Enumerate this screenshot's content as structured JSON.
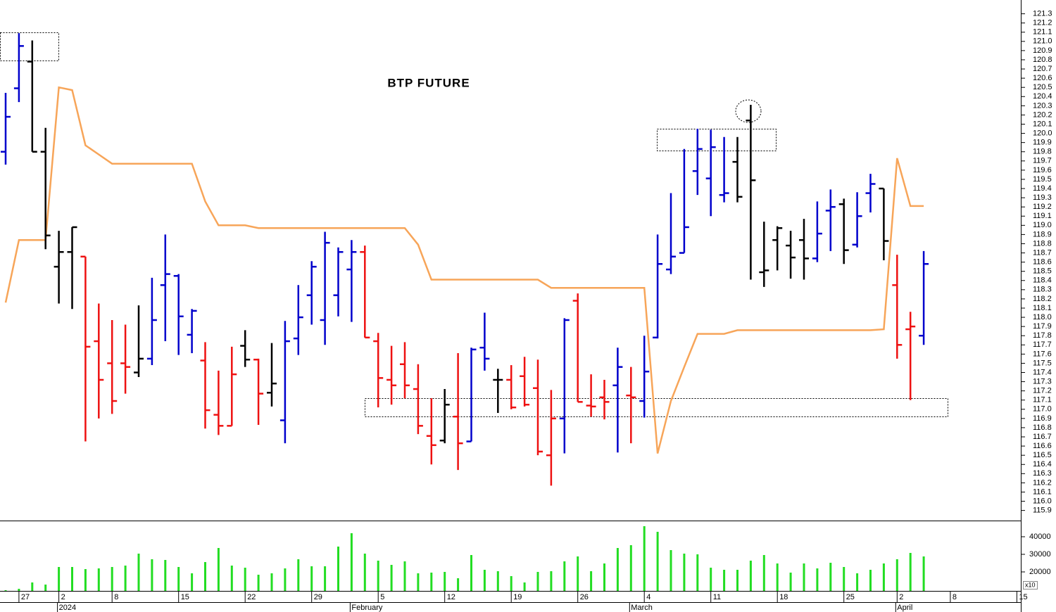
{
  "chart_data": {
    "type": "ohlc",
    "title": "BTP FUTURE",
    "categories": [
      null,
      "27",
      null,
      null,
      "2",
      null,
      null,
      null,
      "8",
      null,
      null,
      null,
      null,
      "15",
      null,
      null,
      null,
      null,
      "22",
      null,
      null,
      null,
      null,
      "29",
      null,
      null,
      null,
      null,
      "5",
      null,
      null,
      null,
      null,
      "12",
      null,
      null,
      null,
      null,
      "19",
      null,
      null,
      null,
      null,
      "26",
      null,
      null,
      null,
      null,
      "4",
      null,
      null,
      null,
      null,
      "11",
      null,
      null,
      null,
      null,
      "18",
      null,
      null,
      null,
      null,
      "25",
      null,
      null,
      null,
      "2",
      null,
      null,
      null,
      "8",
      null,
      null,
      null,
      null,
      "15"
    ],
    "month_labels": [
      null,
      null,
      null,
      null,
      "2024",
      null,
      null,
      null,
      null,
      null,
      null,
      null,
      null,
      null,
      null,
      null,
      null,
      null,
      null,
      null,
      null,
      null,
      null,
      null,
      null,
      null,
      "February",
      null,
      null,
      null,
      null,
      null,
      null,
      null,
      null,
      null,
      null,
      null,
      null,
      null,
      null,
      null,
      null,
      null,
      null,
      null,
      null,
      "March",
      null,
      null,
      null,
      null,
      null,
      null,
      null,
      null,
      null,
      null,
      null,
      null,
      null,
      null,
      null,
      null,
      null,
      null,
      null,
      "April",
      null,
      null,
      null,
      null,
      null,
      null,
      null,
      null,
      null
    ],
    "open": [
      119.8,
      120.49,
      120.78,
      119.8,
      118.55,
      118.71,
      118.66,
      117.74,
      117.5,
      117.5,
      117.4,
      117.55,
      118.35,
      118.45,
      117.81,
      117.53,
      116.94,
      116.82,
      117.69,
      117.54,
      117.18,
      116.88,
      117.77,
      118.24,
      117.97,
      118.24,
      118.52,
      118.71,
      117.74,
      117.32,
      117.49,
      117.22,
      116.71,
      116.66,
      116.92,
      116.65,
      117.67,
      117.32,
      117.32,
      117.36,
      117.23,
      116.5,
      116.9,
      118.18,
      117.04,
      117.13,
      117.26,
      117.15,
      117.09,
      117.78,
      118.52,
      118.7,
      119.59,
      119.51,
      119.33,
      119.69,
      120.14,
      118.49,
      118.84,
      118.78,
      118.84,
      118.64,
      119.16,
      119.23,
      118.79,
      119.35,
      119.4,
      118.35,
      117.87,
      117.8,
      null,
      null,
      null,
      null,
      null,
      null,
      null
    ],
    "high": [
      120.44,
      121.09,
      121.01,
      120.06,
      118.94,
      118.98,
      118.66,
      118.15,
      117.97,
      117.92,
      118.13,
      118.43,
      118.9,
      118.47,
      118.09,
      117.73,
      117.42,
      117.68,
      117.86,
      117.55,
      117.72,
      117.96,
      118.35,
      118.61,
      118.93,
      118.76,
      118.84,
      118.78,
      117.83,
      117.69,
      117.73,
      117.49,
      117.12,
      117.22,
      117.61,
      117.67,
      118.05,
      117.44,
      117.48,
      117.57,
      117.54,
      117.21,
      117.99,
      118.26,
      117.38,
      117.32,
      117.67,
      117.46,
      117.8,
      118.9,
      119.35,
      119.83,
      120.05,
      120.04,
      119.96,
      119.96,
      120.31,
      119.04,
      118.99,
      118.94,
      119.07,
      119.26,
      119.39,
      119.29,
      119.36,
      119.56,
      119.4,
      118.68,
      118.06,
      118.72,
      null,
      null,
      null,
      null,
      null,
      null,
      null
    ],
    "low": [
      119.66,
      120.34,
      119.8,
      118.74,
      118.15,
      118.09,
      116.65,
      116.9,
      116.95,
      117.17,
      117.35,
      117.48,
      117.74,
      117.59,
      117.61,
      116.79,
      116.72,
      116.82,
      117.46,
      116.83,
      117.03,
      116.63,
      117.59,
      117.92,
      117.7,
      118.01,
      117.95,
      117.78,
      117.02,
      117.05,
      117.12,
      116.73,
      116.4,
      116.63,
      116.34,
      116.65,
      117.42,
      116.96,
      117.0,
      117.03,
      116.5,
      116.17,
      116.52,
      117.08,
      116.92,
      116.89,
      116.53,
      116.63,
      116.91,
      117.77,
      118.47,
      118.7,
      119.33,
      119.1,
      119.25,
      119.25,
      118.41,
      118.33,
      118.51,
      118.42,
      118.41,
      118.6,
      118.72,
      118.58,
      118.76,
      119.14,
      118.62,
      117.55,
      117.1,
      117.7,
      null,
      null,
      null,
      null,
      null,
      null,
      null
    ],
    "close": [
      120.18,
      120.95,
      119.8,
      118.89,
      118.71,
      118.98,
      117.68,
      117.32,
      117.09,
      117.46,
      117.55,
      117.97,
      118.47,
      118.01,
      118.07,
      116.99,
      116.82,
      117.38,
      117.54,
      117.17,
      117.28,
      117.74,
      118.0,
      118.55,
      118.81,
      118.71,
      118.71,
      117.78,
      117.34,
      117.26,
      117.26,
      116.82,
      116.61,
      117.05,
      116.63,
      117.65,
      117.55,
      117.32,
      117.02,
      117.05,
      116.54,
      116.9,
      117.97,
      117.08,
      117.03,
      117.08,
      117.46,
      117.13,
      117.41,
      118.58,
      118.66,
      118.98,
      119.83,
      119.85,
      119.35,
      119.31,
      119.49,
      118.51,
      118.97,
      118.65,
      118.64,
      118.91,
      119.2,
      118.73,
      119.1,
      119.45,
      118.83,
      117.7,
      117.9,
      118.58,
      null,
      null,
      null,
      null,
      null,
      null,
      null
    ],
    "bar_colors": [
      "#0000cc",
      "#0000cc",
      "#000000",
      "#000000",
      "#000000",
      "#000000",
      "#ee1111",
      "#ee1111",
      "#ee1111",
      "#ee1111",
      "#000000",
      "#0000cc",
      "#0000cc",
      "#0000cc",
      "#0000cc",
      "#ee1111",
      "#ee1111",
      "#ee1111",
      "#000000",
      "#ee1111",
      "#000000",
      "#0000cc",
      "#0000cc",
      "#0000cc",
      "#0000cc",
      "#0000cc",
      "#0000cc",
      "#ee1111",
      "#ee1111",
      "#ee1111",
      "#ee1111",
      "#ee1111",
      "#ee1111",
      "#000000",
      "#ee1111",
      "#0000cc",
      "#0000cc",
      "#000000",
      "#ee1111",
      "#ee1111",
      "#ee1111",
      "#ee1111",
      "#0000cc",
      "#ee1111",
      "#ee1111",
      "#ee1111",
      "#0000cc",
      "#ee1111",
      "#0000cc",
      "#0000cc",
      "#0000cc",
      "#0000cc",
      "#0000cc",
      "#0000cc",
      "#0000cc",
      "#000000",
      "#000000",
      "#000000",
      "#000000",
      "#000000",
      "#000000",
      "#0000cc",
      "#0000cc",
      "#000000",
      "#0000cc",
      "#0000cc",
      "#000000",
      "#ee1111",
      "#ee1111",
      "#0000cc",
      null,
      null,
      null,
      null,
      null,
      null,
      null
    ],
    "line": [
      118.16,
      118.84,
      118.84,
      118.84,
      120.5,
      120.47,
      119.87,
      119.77,
      119.67,
      119.67,
      119.67,
      119.67,
      119.67,
      119.67,
      119.67,
      119.26,
      119.0,
      119.0,
      119.0,
      118.97,
      118.97,
      118.97,
      118.97,
      118.97,
      118.97,
      118.97,
      118.97,
      118.97,
      118.97,
      118.97,
      118.97,
      118.79,
      118.41,
      118.41,
      118.41,
      118.41,
      118.41,
      118.41,
      118.41,
      118.41,
      118.41,
      118.32,
      118.32,
      118.32,
      118.32,
      118.32,
      118.32,
      118.32,
      118.32,
      116.52,
      117.09,
      117.46,
      117.82,
      117.82,
      117.82,
      117.86,
      117.86,
      117.86,
      117.86,
      117.86,
      117.86,
      117.86,
      117.86,
      117.86,
      117.86,
      117.86,
      117.87,
      119.73,
      119.21,
      119.21,
      null,
      null,
      null,
      null,
      null,
      null,
      null
    ],
    "line_color": "#f7a559",
    "volume": [
      9600,
      10400,
      14000,
      12800,
      22800,
      22800,
      21600,
      22000,
      22800,
      23600,
      30400,
      27200,
      26800,
      22800,
      19200,
      25600,
      33600,
      23600,
      22400,
      18400,
      19200,
      22000,
      27200,
      23200,
      23200,
      34400,
      42000,
      30400,
      26400,
      24000,
      26000,
      19200,
      19600,
      20000,
      16400,
      29600,
      21200,
      20400,
      17600,
      14000,
      20000,
      20400,
      26000,
      28800,
      20400,
      24800,
      33600,
      35200,
      46000,
      42800,
      32400,
      30400,
      30000,
      22400,
      21200,
      21200,
      26400,
      29600,
      24800,
      19600,
      24800,
      22000,
      25200,
      22800,
      19200,
      21200,
      24800,
      27200,
      30800,
      28800,
      null,
      null,
      null,
      null,
      null,
      null,
      null
    ],
    "volume_color": "#22dd22",
    "ylim": [
      115.79,
      121.45
    ],
    "yticks": [
      115.9,
      {
        "value": 116,
        "label": "116.0"
      },
      116.1,
      116.2,
      116.3,
      116.4,
      116.5,
      116.6,
      116.7,
      116.8,
      116.9,
      {
        "value": 117,
        "label": "117.0"
      },
      117.1,
      117.2,
      117.3,
      117.4,
      117.5,
      117.6,
      117.7,
      117.8,
      117.9,
      {
        "value": 118,
        "label": "118.0"
      },
      118.1,
      118.2,
      118.3,
      118.4,
      118.5,
      118.6,
      118.7,
      118.8,
      118.9,
      {
        "value": 119,
        "label": "119.0"
      },
      119.1,
      119.2,
      119.3,
      119.4,
      119.5,
      119.6,
      119.7,
      119.8,
      119.9,
      {
        "value": 120,
        "label": "120.0"
      },
      120.1,
      120.2,
      120.3,
      120.4,
      120.5,
      120.6,
      120.7,
      120.8,
      120.9,
      {
        "value": 121,
        "label": "121.0"
      },
      121.1,
      121.2,
      121.3
    ],
    "volume_ylim": [
      9200,
      48400
    ],
    "volume_yticks": [
      20000,
      30000,
      40000
    ],
    "volume_multiplier_label": "x10"
  }
}
